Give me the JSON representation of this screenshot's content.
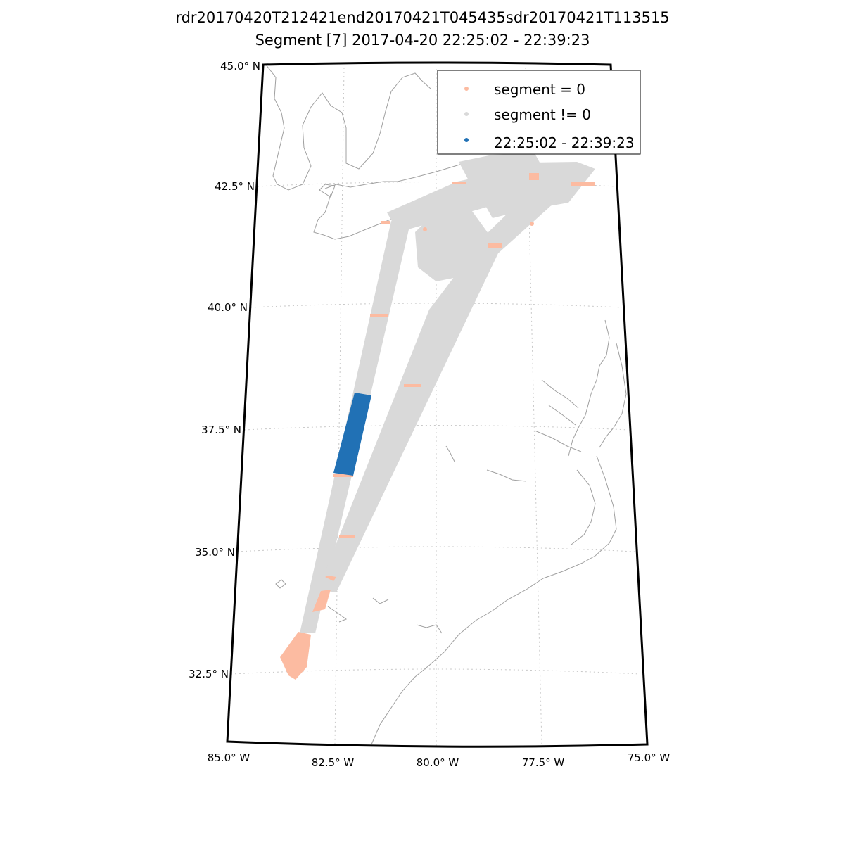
{
  "title": {
    "line1": "rdr20170420T212421end20170421T045435sdr20170421T113515",
    "line2": "Segment [7] 2017-04-20 22:25:02 - 22:39:23"
  },
  "legend": {
    "items": [
      {
        "label": "segment = 0",
        "color": "#fcbba1"
      },
      {
        "label": "segment != 0",
        "color": "#d9d9d9"
      },
      {
        "label": "22:25:02 - 22:39:23",
        "color": "#2171b5"
      }
    ]
  },
  "axes": {
    "lat_ticks": [
      "45.0° N",
      "42.5° N",
      "40.0° N",
      "37.5° N",
      "35.0° N",
      "32.5° N"
    ],
    "lon_ticks": [
      "85.0° W",
      "82.5° W",
      "80.0° W",
      "77.5° W",
      "75.0° W"
    ]
  },
  "colors": {
    "segment_zero": "#fcbba1",
    "segment_nonzero": "#d9d9d9",
    "highlight": "#2171b5",
    "coastline": "#a0a0a0",
    "grid": "#c8c8c8",
    "frame": "#000000"
  }
}
